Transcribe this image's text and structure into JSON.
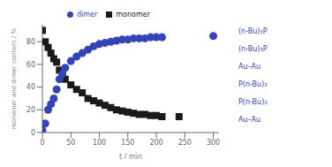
{
  "chart_data": {
    "type": "scatter",
    "xlabel": "t / min",
    "ylabel": "monomer and dimer content / %",
    "xlim": [
      0,
      310
    ],
    "ylim": [
      0,
      95
    ],
    "xticks": [
      0,
      50,
      100,
      150,
      200,
      250,
      300
    ],
    "yticks": [
      0,
      20,
      40,
      60,
      80
    ],
    "grid": false,
    "legend": "top",
    "series": [
      {
        "name": "monomer",
        "color": "#1a1a1a",
        "marker": "square",
        "x": [
          0,
          5,
          10,
          15,
          20,
          25,
          30,
          35,
          40,
          50,
          60,
          70,
          80,
          90,
          100,
          110,
          120,
          130,
          140,
          150,
          160,
          170,
          180,
          190,
          200,
          210,
          240
        ],
        "values": [
          90,
          80,
          75,
          70,
          65,
          62,
          55,
          50,
          47,
          42,
          38,
          35,
          30,
          28,
          26,
          24,
          22,
          20,
          19,
          18,
          17,
          16,
          16,
          15,
          15,
          14,
          14
        ]
      },
      {
        "name": "dimer",
        "color": "#3344bb",
        "marker": "circle",
        "x": [
          0,
          5,
          10,
          15,
          20,
          25,
          30,
          35,
          40,
          50,
          60,
          70,
          80,
          90,
          100,
          110,
          120,
          130,
          140,
          150,
          160,
          170,
          180,
          190,
          200,
          210,
          300
        ],
        "values": [
          2,
          8,
          20,
          25,
          30,
          38,
          47,
          52,
          57,
          63,
          67,
          70,
          73,
          76,
          78,
          79,
          80,
          81,
          82,
          82,
          83,
          83,
          83,
          84,
          84,
          84,
          85
        ]
      }
    ],
    "annotations": [
      "(n-Bu)₃P",
      "(n-Bu)₃P",
      "Au–Au",
      "P(n-Bu)₃",
      "P(n-Bu)₃",
      "Au–Au"
    ],
    "annotation_color": "#3344bb"
  }
}
